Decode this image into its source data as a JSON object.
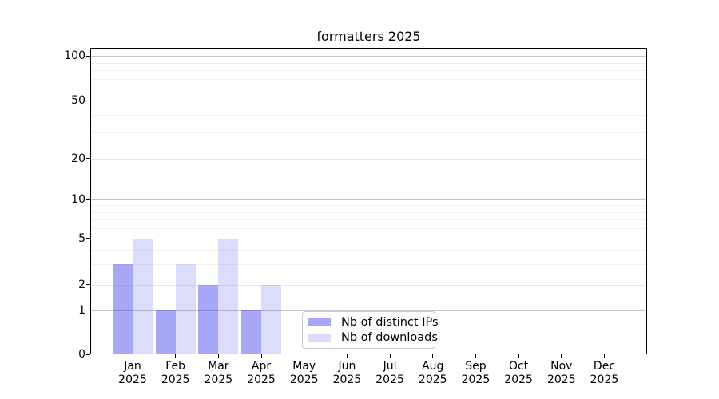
{
  "figure": {
    "background_color": "#ffffff"
  },
  "chart_data": {
    "type": "bar",
    "title": "formatters 2025",
    "xlabel": "",
    "ylabel": "",
    "x_categories": [
      [
        "Jan",
        "2025"
      ],
      [
        "Feb",
        "2025"
      ],
      [
        "Mar",
        "2025"
      ],
      [
        "Apr",
        "2025"
      ],
      [
        "May",
        "2025"
      ],
      [
        "Jun",
        "2025"
      ],
      [
        "Jul",
        "2025"
      ],
      [
        "Aug",
        "2025"
      ],
      [
        "Sep",
        "2025"
      ],
      [
        "Oct",
        "2025"
      ],
      [
        "Nov",
        "2025"
      ],
      [
        "Dec",
        "2025"
      ]
    ],
    "series": [
      {
        "name": "Nb of distinct IPs",
        "bar_color": "rgba(60,60,235,0.45)",
        "legend_color": "#a7a7f6",
        "values": [
          3,
          1,
          2,
          1,
          0,
          0,
          0,
          0,
          0,
          0,
          0,
          0
        ]
      },
      {
        "name": "Nb of downloads",
        "bar_color": "rgba(60,60,235,0.18)",
        "legend_color": "#dcdcfb",
        "values": [
          5,
          3,
          5,
          2,
          0,
          0,
          0,
          0,
          0,
          0,
          0,
          0
        ]
      }
    ],
    "yscale": "symlog",
    "ylim": [
      0,
      113
    ],
    "yticks": [
      0,
      1,
      2,
      5,
      10,
      20,
      50,
      100
    ],
    "minor_yticks": [
      3,
      4,
      6,
      7,
      8,
      9,
      30,
      40,
      60,
      70,
      80,
      90
    ],
    "grid": "horizontal, both major and minor",
    "grid_color_power10": "#c6c6c6",
    "grid_color_other": "#e9e9e9",
    "grid_color_minor": "#f0f0f0",
    "legend_position": "lower center"
  }
}
